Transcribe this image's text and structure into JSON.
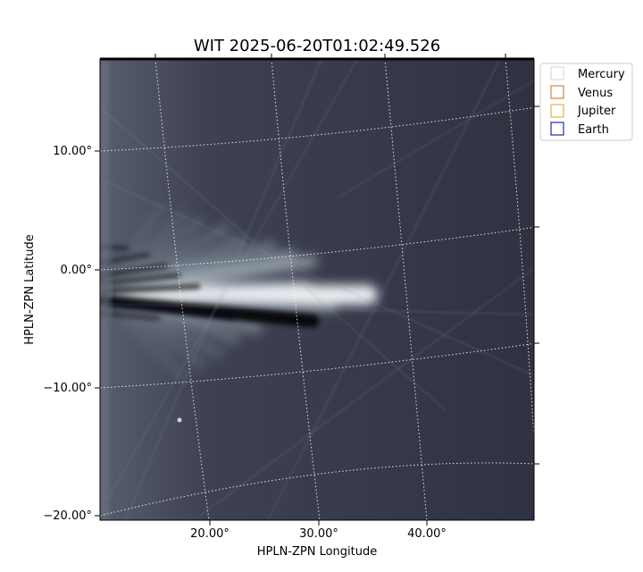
{
  "chart_data": {
    "type": "image",
    "title": "WIT 2025-06-20T01:02:49.526",
    "xlabel": "HPLN-ZPN Longitude",
    "ylabel": "HPLN-ZPN Latitude",
    "x_ticks": [
      "20.00°",
      "30.00°",
      "40.00°"
    ],
    "y_ticks": [
      "10.00°",
      "0.00°",
      "−10.00°",
      "−20.00°"
    ],
    "colormap": "bone",
    "grid": "dotted white coordinate grid",
    "legend": {
      "placement": "outside top-right",
      "entries": [
        {
          "name": "Mercury",
          "color": "#d3d3d3"
        },
        {
          "name": "Venus",
          "color": "#d2691e"
        },
        {
          "name": "Jupiter",
          "color": "#daa520"
        },
        {
          "name": "Earth",
          "color": "#000080"
        }
      ]
    }
  }
}
